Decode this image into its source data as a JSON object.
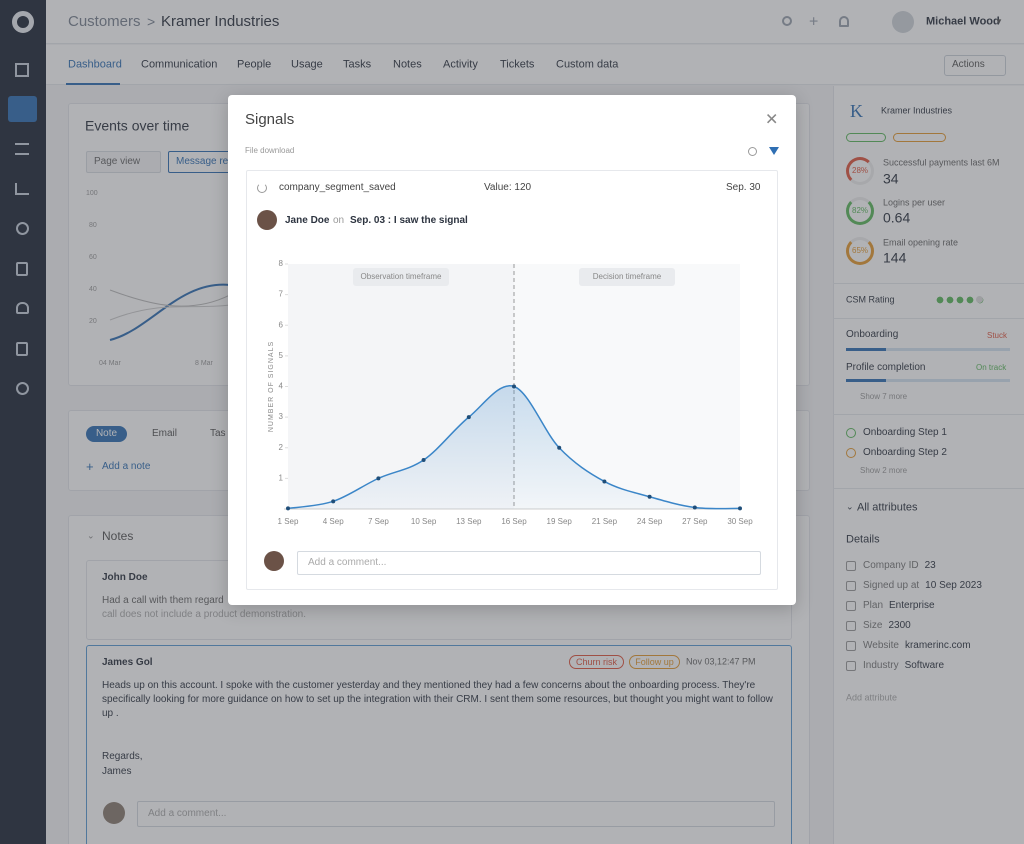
{
  "header": {
    "breadcrumb": "Customers",
    "separator": ">",
    "company": "Kramer Industries",
    "user": "Michael Wood"
  },
  "tabs": [
    "Dashboard",
    "Communication",
    "People",
    "Usage",
    "Tasks",
    "Notes",
    "Activity",
    "Tickets",
    "Custom data"
  ],
  "actions": "Actions",
  "events": {
    "title": "Events over time",
    "filters": [
      "Page view",
      "Message re"
    ],
    "yticks": [
      100,
      80,
      60,
      40,
      20
    ],
    "xlabels": [
      "04 Mar",
      "8 Mar"
    ]
  },
  "composer": {
    "tabs": [
      "Note",
      "Email",
      "Tas"
    ],
    "add": "Add a note"
  },
  "notes": {
    "title": "Notes",
    "items": [
      {
        "author": "John Doe",
        "lines": [
          "Had a call with them regard",
          "call does not include a product demonstration."
        ]
      },
      {
        "author": "James Gol",
        "tags": [
          "Churn risk",
          "Follow up"
        ],
        "time": "Nov 03,12:47 PM",
        "text": "Heads up on this account. I spoke with the customer yesterday and they mentioned they had a few concerns about the onboarding process. They're specifically looking for more guidance on how to set up the integration with their CRM. I sent them some resources, but thought you might want to follow up .",
        "regards": "Regards,",
        "signature": "James",
        "comment": "Add a comment..."
      }
    ]
  },
  "account": {
    "logo": "K",
    "name": "Kramer Industries",
    "metrics": [
      {
        "percent": "28%",
        "label": "Successful payments last 6M",
        "value": "34"
      },
      {
        "percent": "82%",
        "label": "Logins per user",
        "value": "0.64"
      },
      {
        "percent": "65%",
        "label": "Email opening rate",
        "value": "144"
      }
    ],
    "csm": "CSM Rating",
    "progress": [
      {
        "label": "Onboarding",
        "status": "Stuck"
      },
      {
        "label": "Profile completion",
        "status": "On track"
      }
    ],
    "show_more_1": "Show 7 more",
    "steps": [
      "Onboarding Step 1",
      "Onboarding Step 2"
    ],
    "show_more_2": "Show 2 more",
    "all_attributes": "All attributes",
    "details_title": "Details",
    "details": [
      {
        "label": "Company ID",
        "value": "23"
      },
      {
        "label": "Signed up at",
        "value": "10 Sep 2023"
      },
      {
        "label": "Plan",
        "value": "Enterprise"
      },
      {
        "label": "Size",
        "value": "2300"
      },
      {
        "label": "Website",
        "value": "kramerinc.com"
      },
      {
        "label": "Industry",
        "value": "Software"
      }
    ],
    "add_attribute": "Add attribute"
  },
  "modal": {
    "title": "Signals",
    "subtitle": "File download",
    "signal": {
      "name": "company_segment_saved",
      "value": "Value: 120",
      "date": "Sep. 30"
    },
    "entry": {
      "author": "Jane Doe",
      "on": "on",
      "text": "Sep. 03 : I saw the signal"
    },
    "comment": "Add a comment..."
  },
  "chart_data": {
    "type": "line",
    "y_label": "NUMBER OF SIGNALS",
    "annotations": [
      "Observation timeframe",
      "Decision timeframe"
    ],
    "categories": [
      "1 Sep",
      "4 Sep",
      "7 Sep",
      "10 Sep",
      "13 Sep",
      "16 Sep",
      "19 Sep",
      "21 Sep",
      "24 Sep",
      "27 Sep",
      "30 Sep"
    ],
    "values": [
      0.02,
      0.25,
      1.0,
      1.6,
      3.0,
      4.0,
      2.0,
      0.9,
      0.4,
      0.05,
      0.02
    ],
    "color": "#3b86c8",
    "ylim": [
      0,
      8
    ],
    "yticks": [
      1,
      2,
      3,
      4,
      5,
      6,
      7,
      8
    ]
  }
}
